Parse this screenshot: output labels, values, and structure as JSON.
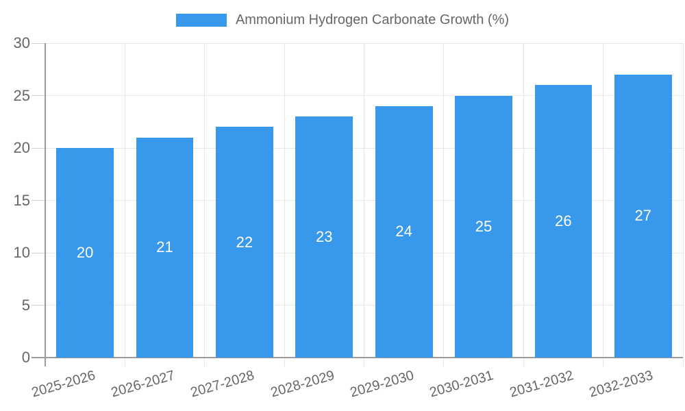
{
  "chart_data": {
    "type": "bar",
    "title": "Ammonium Hydrogen Carbonate Growth (%)",
    "categories": [
      "2025-2026",
      "2026-2027",
      "2027-2028",
      "2028-2029",
      "2029-2030",
      "2030-2031",
      "2031-2032",
      "2032-2033"
    ],
    "values": [
      20,
      21,
      22,
      23,
      24,
      25,
      26,
      27
    ],
    "series": [
      {
        "name": "Ammonium Hydrogen Carbonate Growth (%)",
        "values": [
          20,
          21,
          22,
          23,
          24,
          25,
          26,
          27
        ]
      }
    ],
    "xlabel": "",
    "ylabel": "",
    "ylim": [
      0,
      30
    ],
    "yticks": [
      0,
      5,
      10,
      15,
      20,
      25,
      30
    ],
    "grid": true,
    "legend_position": "top",
    "bar_labels_inside": true,
    "x_label_rotation_deg": -16,
    "colors": {
      "bar": "#3898EC",
      "bar_label": "#FFFFFF",
      "axis": "#9B9B9B",
      "grid": "#E6E6E6",
      "tick": "#CFCFCF",
      "text": "#666666",
      "background": "#FFFFFF"
    }
  }
}
